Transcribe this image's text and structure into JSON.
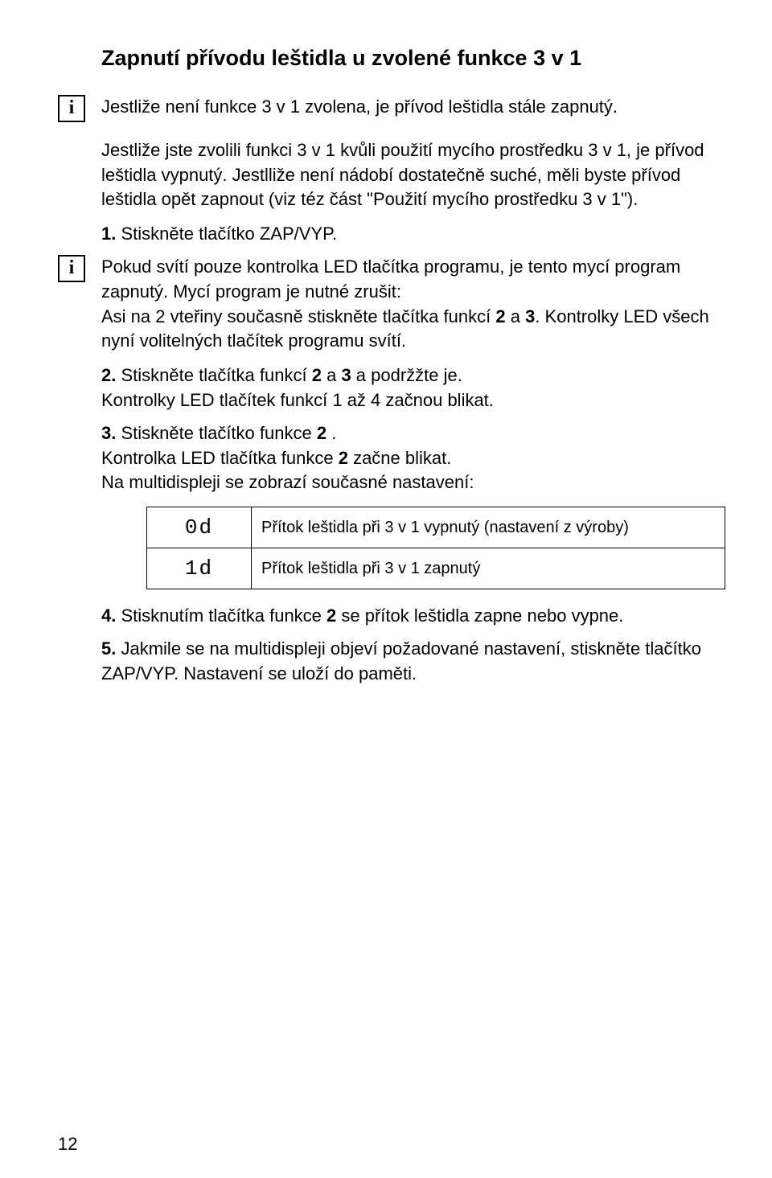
{
  "title": "Zapnutí přívodu leštidla u zvolené funkce 3 v 1",
  "info1": "Jestliže není funkce 3 v 1 zvolena, je přívod leštidla stále zapnutý.",
  "intro_para": "Jestliže jste zvolili funkci 3 v 1 kvůli použití mycího prostředku 3 v 1, je přívod leštidla vypnutý. Jestlliže není nádobí dostatečně suché, měli byste přívod leštidla opět zapnout (viz téz část \"Použití mycího prostředku 3 v 1\").",
  "step1_num": "1.",
  "step1_text": "Stiskněte tlačítko ZAP/VYP.",
  "info2_p1_a": "Pokud svítí pouze kontrolka LED tlačítka programu, je tento mycí program zapnutý. Mycí program je nutné zrušit:",
  "info2_p1_b_pre": "Asi na 2 vteřiny současně stiskněte tlačítka funkcí ",
  "info2_p1_b_b1": "2",
  "info2_p1_b_mid": " a ",
  "info2_p1_b_b2": "3",
  "info2_p1_b_post": ". Kontrolky LED všech nyní volitelných tlačítek programu svítí.",
  "step2_num": "2.",
  "step2_a": "Stiskněte tlačítka funkcí ",
  "step2_b1": "2",
  "step2_mid": " a ",
  "step2_b2": "3",
  "step2_c": " a podržžte je.",
  "step2_line2": "Kontrolky LED tlačítek funkcí 1 až 4 začnou blikat.",
  "step3_num": "3.",
  "step3_a": "Stiskněte tlačítko funkce  ",
  "step3_b": "2",
  "step3_c": " .",
  "step3_line2_a": "Kontrolka LED tlačítka funkce  ",
  "step3_line2_b": "2",
  "step3_line2_c": "   začne blikat.",
  "step3_line3": "Na multidispleji se zobrazí současné nastavení:",
  "table": {
    "rows": [
      {
        "code": "0d",
        "desc": "Přítok leštidla při 3 v 1 vypnutý (nastavení z výroby)"
      },
      {
        "code": "1d",
        "desc": "Přítok leštidla při 3 v 1 zapnutý"
      }
    ]
  },
  "step4_num": "4.",
  "step4_a": "Stisknutím tlačítka funkce  ",
  "step4_b": "2",
  "step4_c": "  se přítok leštidla zapne nebo vypne.",
  "step5_num": "5.",
  "step5_text": "Jakmile se na multidispleji objeví požadované nastavení, stiskněte tlačítko ZAP/VYP. Nastavení se uloží do paměti.",
  "page_number": "12"
}
